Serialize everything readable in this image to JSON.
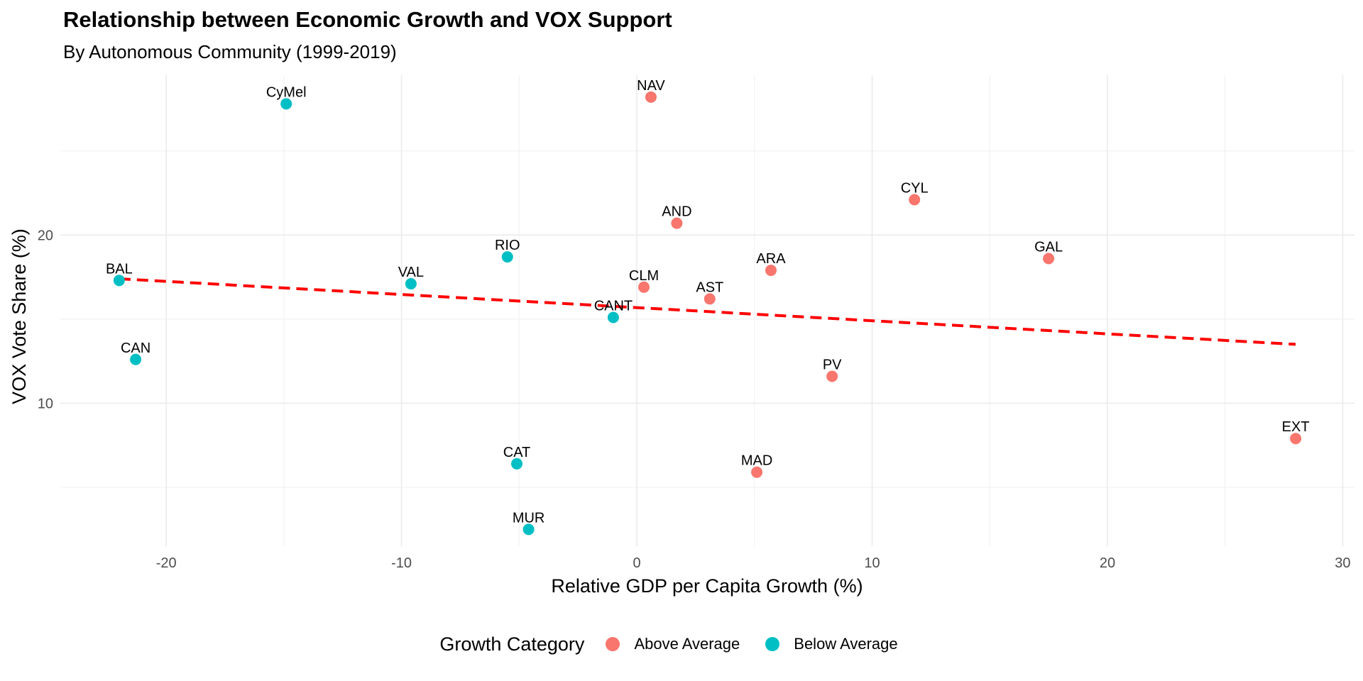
{
  "chart_data": {
    "type": "scatter",
    "title": "Relationship between Economic Growth and VOX Support",
    "subtitle": "By Autonomous Community (1999-2019)",
    "xlabel": "Relative GDP per Capita Growth (%)",
    "ylabel": "VOX Vote Share (%)",
    "xlim": [
      -24.5,
      30.5
    ],
    "ylim": [
      1.5,
      29.5
    ],
    "x_ticks": [
      -20,
      -10,
      0,
      10,
      20,
      30
    ],
    "x_tick_labels": [
      "-20",
      "-10",
      "0",
      "10",
      "20",
      "30"
    ],
    "y_ticks": [
      10,
      20
    ],
    "y_tick_labels": [
      "10",
      "20"
    ],
    "grid": true,
    "legend_position": "bottom",
    "legend_title": "Growth Category",
    "categories": [
      {
        "name": "Above Average",
        "color": "#F8766D"
      },
      {
        "name": "Below Average",
        "color": "#00BFC4"
      }
    ],
    "points": [
      {
        "label": "NAV",
        "x": 0.6,
        "y": 28.2,
        "category": "Above Average"
      },
      {
        "label": "CyMel",
        "x": -14.9,
        "y": 27.8,
        "category": "Below Average"
      },
      {
        "label": "CYL",
        "x": 11.8,
        "y": 22.1,
        "category": "Above Average"
      },
      {
        "label": "AND",
        "x": 1.7,
        "y": 20.7,
        "category": "Above Average"
      },
      {
        "label": "RIO",
        "x": -5.5,
        "y": 18.7,
        "category": "Below Average"
      },
      {
        "label": "GAL",
        "x": 17.5,
        "y": 18.6,
        "category": "Above Average"
      },
      {
        "label": "ARA",
        "x": 5.7,
        "y": 17.9,
        "category": "Above Average"
      },
      {
        "label": "BAL",
        "x": -22.0,
        "y": 17.3,
        "category": "Below Average"
      },
      {
        "label": "VAL",
        "x": -9.6,
        "y": 17.1,
        "category": "Below Average"
      },
      {
        "label": "CLM",
        "x": 0.3,
        "y": 16.9,
        "category": "Above Average"
      },
      {
        "label": "AST",
        "x": 3.1,
        "y": 16.2,
        "category": "Above Average"
      },
      {
        "label": "CANT",
        "x": -1.0,
        "y": 15.1,
        "category": "Below Average"
      },
      {
        "label": "CAN",
        "x": -21.3,
        "y": 12.6,
        "category": "Below Average"
      },
      {
        "label": "PV",
        "x": 8.3,
        "y": 11.6,
        "category": "Above Average"
      },
      {
        "label": "EXT",
        "x": 28.0,
        "y": 7.9,
        "category": "Above Average"
      },
      {
        "label": "CAT",
        "x": -5.1,
        "y": 6.4,
        "category": "Below Average"
      },
      {
        "label": "MAD",
        "x": 5.1,
        "y": 5.9,
        "category": "Above Average"
      },
      {
        "label": "MUR",
        "x": -4.6,
        "y": 2.5,
        "category": "Below Average"
      }
    ],
    "trend_line": {
      "x": [
        -22.0,
        28.0
      ],
      "y": [
        17.4,
        13.5
      ],
      "color": "#FF0000",
      "style": "dashed"
    }
  }
}
